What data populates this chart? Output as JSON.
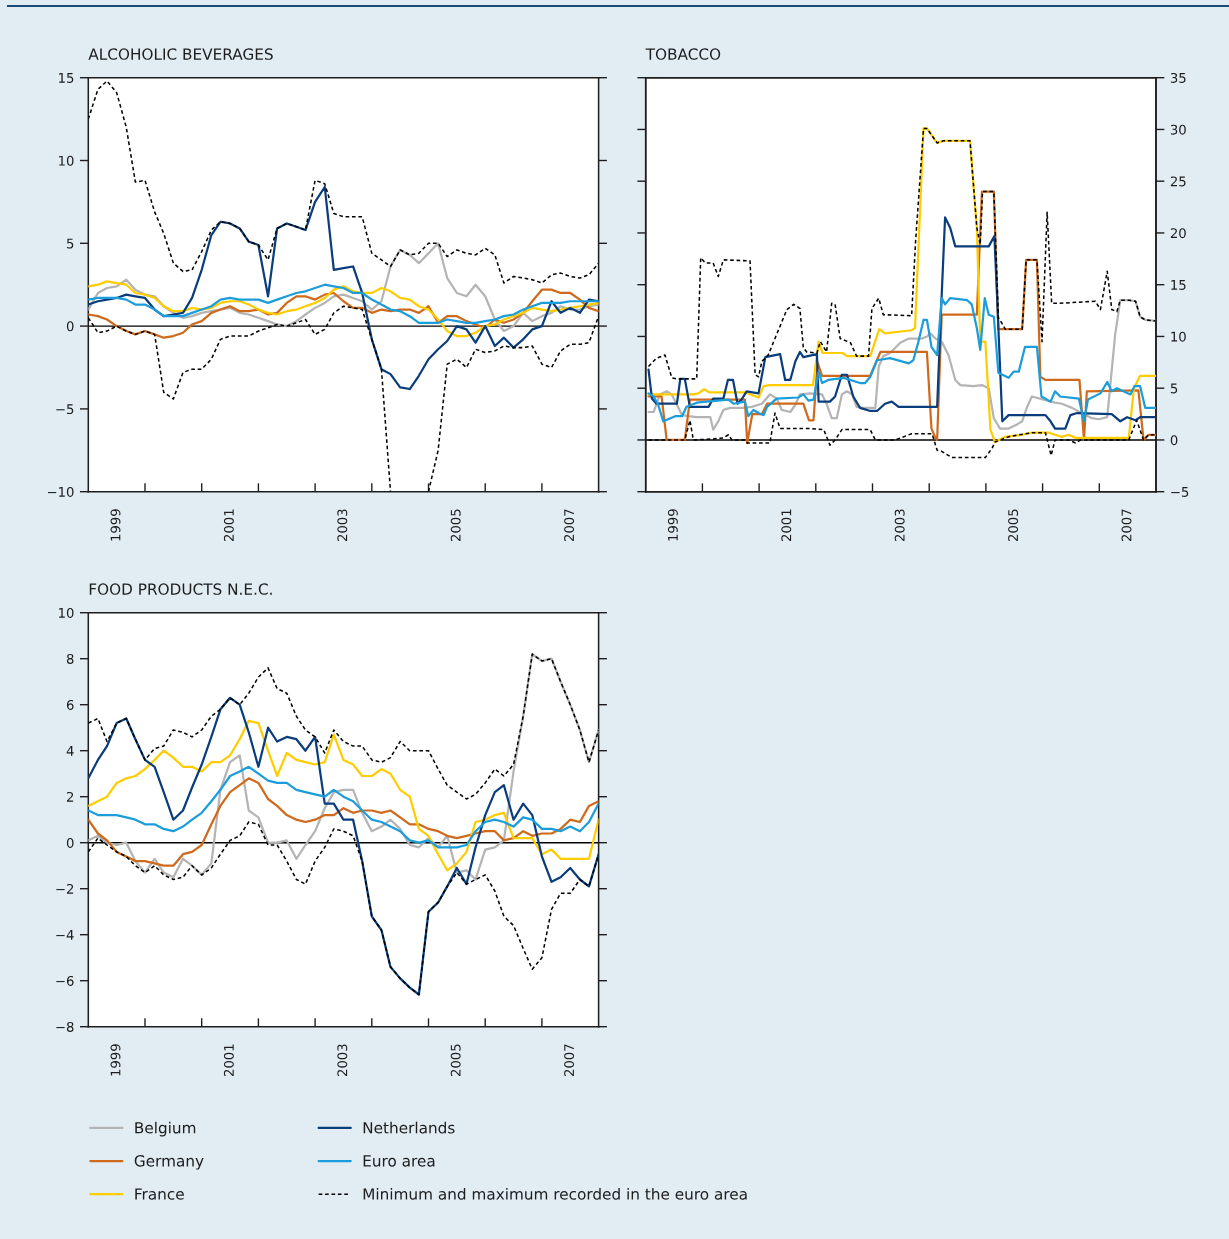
{
  "chart_data": [
    {
      "type": "line",
      "title": "ALCOHOLIC BEVERAGES",
      "legend": "bottom",
      "xlim": [
        1999,
        2008
      ],
      "xticks": [
        {
          "value": 1999.5,
          "label": "1999"
        },
        {
          "value": 2000,
          "label": null
        },
        {
          "value": 2001,
          "label": null
        },
        {
          "value": 2001.5,
          "label": "2001"
        },
        {
          "value": 2002,
          "label": null
        },
        {
          "value": 2003,
          "label": null
        },
        {
          "value": 2003.5,
          "label": "2003"
        },
        {
          "value": 2004,
          "label": null
        },
        {
          "value": 2005,
          "label": null
        },
        {
          "value": 2005.5,
          "label": "2005"
        },
        {
          "value": 2006,
          "label": null
        },
        {
          "value": 2007,
          "label": null
        },
        {
          "value": 2007.5,
          "label": "2007"
        }
      ],
      "ylim": [
        -10,
        15
      ],
      "yticks": [
        {
          "value": -10,
          "label": "−10"
        },
        {
          "value": -5,
          "label": "−5"
        },
        0,
        5,
        10,
        15
      ],
      "ref_lines": [
        {
          "axis": "y",
          "value": 0,
          "color": "#000000"
        }
      ],
      "x": [
        1999.0,
        1999.17,
        1999.33,
        1999.5,
        1999.67,
        1999.83,
        2000.0,
        2000.17,
        2000.33,
        2000.5,
        2000.67,
        2000.83,
        2001.0,
        2001.17,
        2001.33,
        2001.5,
        2001.67,
        2001.83,
        2002.0,
        2002.17,
        2002.33,
        2002.5,
        2002.67,
        2002.83,
        2003.0,
        2003.17,
        2003.33,
        2003.5,
        2003.67,
        2003.83,
        2004.0,
        2004.17,
        2004.33,
        2004.5,
        2004.67,
        2004.83,
        2005.0,
        2005.17,
        2005.33,
        2005.5,
        2005.67,
        2005.83,
        2006.0,
        2006.17,
        2006.33,
        2006.5,
        2006.67,
        2006.83,
        2007.0,
        2007.17,
        2007.33,
        2007.5,
        2007.67,
        2007.83,
        2008.0
      ],
      "series": [
        {
          "name": "Belgium",
          "color": "#b4b4b4",
          "values": [
            1.0,
            2.0,
            2.3,
            2.4,
            2.8,
            2.2,
            1.9,
            1.8,
            1.2,
            0.8,
            0.5,
            0.6,
            0.8,
            0.9,
            1.0,
            1.1,
            0.8,
            0.7,
            0.5,
            0.3,
            0.1,
            0.0,
            0.3,
            0.7,
            1.1,
            1.4,
            1.8,
            1.9,
            1.7,
            1.5,
            1.0,
            1.5,
            3.6,
            4.6,
            4.3,
            3.8,
            4.4,
            5.0,
            2.9,
            2.0,
            1.8,
            2.5,
            1.8,
            0.4,
            -0.3,
            0.0,
            0.8,
            0.3,
            0.6,
            0.8,
            1.2,
            1.0,
            1.0,
            1.2,
            1.3
          ]
        },
        {
          "name": "Germany",
          "color": "#cf6a1d",
          "values": [
            0.7,
            0.6,
            0.4,
            0.0,
            -0.3,
            -0.5,
            -0.3,
            -0.5,
            -0.7,
            -0.6,
            -0.4,
            0.1,
            0.3,
            0.8,
            1.0,
            1.2,
            0.9,
            0.9,
            1.0,
            0.7,
            0.8,
            1.4,
            1.8,
            1.8,
            1.6,
            1.9,
            2.0,
            1.5,
            1.1,
            1.1,
            0.8,
            1.0,
            0.9,
            1.0,
            1.0,
            0.8,
            1.2,
            0.2,
            0.6,
            0.6,
            0.3,
            0.1,
            -0.1,
            0.4,
            0.2,
            0.4,
            0.8,
            1.5,
            2.2,
            2.2,
            2.0,
            2.0,
            1.6,
            1.1,
            0.9
          ]
        },
        {
          "name": "France",
          "color": "#ffcc00",
          "values": [
            2.4,
            2.5,
            2.7,
            2.6,
            2.5,
            2.0,
            1.9,
            1.7,
            1.2,
            0.9,
            0.9,
            1.1,
            1.0,
            1.1,
            1.4,
            1.5,
            1.5,
            1.3,
            1.0,
            0.8,
            0.7,
            0.9,
            1.0,
            1.2,
            1.4,
            1.7,
            2.2,
            2.4,
            2.1,
            2.0,
            2.0,
            2.3,
            2.1,
            1.7,
            1.6,
            1.2,
            1.0,
            0.4,
            -0.3,
            -0.6,
            -0.6,
            -0.4,
            0.0,
            0.1,
            0.4,
            0.6,
            0.8,
            1.1,
            1.0,
            0.9,
            1.0,
            1.1,
            1.2,
            1.3,
            1.4
          ]
        },
        {
          "name": "Netherlands",
          "color": "#0a3d7c",
          "values": [
            1.3,
            1.5,
            1.6,
            1.7,
            1.9,
            1.8,
            1.7,
            1.0,
            0.6,
            0.7,
            0.8,
            1.7,
            3.4,
            5.5,
            6.3,
            6.2,
            5.9,
            5.1,
            4.9,
            1.8,
            5.9,
            6.2,
            6.0,
            5.8,
            7.5,
            8.4,
            3.4,
            3.5,
            3.6,
            2.0,
            -0.8,
            -2.6,
            -2.9,
            -3.7,
            -3.8,
            -3.0,
            -2.0,
            -1.4,
            -0.9,
            0.0,
            -0.2,
            -1.0,
            0.0,
            -1.2,
            -0.7,
            -1.3,
            -0.8,
            -0.2,
            0.0,
            1.5,
            0.8,
            1.1,
            0.8,
            1.6,
            1.5
          ]
        },
        {
          "name": "Euro area",
          "color": "#1b9ddb",
          "values": [
            1.6,
            1.7,
            1.7,
            1.7,
            1.6,
            1.3,
            1.3,
            1.0,
            0.6,
            0.6,
            0.6,
            0.8,
            1.0,
            1.2,
            1.6,
            1.7,
            1.6,
            1.6,
            1.6,
            1.4,
            1.6,
            1.8,
            2.0,
            2.1,
            2.3,
            2.5,
            2.4,
            2.3,
            2.0,
            2.0,
            1.6,
            1.3,
            1.0,
            0.9,
            0.6,
            0.2,
            0.2,
            0.2,
            0.4,
            0.3,
            0.2,
            0.2,
            0.3,
            0.4,
            0.6,
            0.7,
            1.0,
            1.2,
            1.4,
            1.4,
            1.4,
            1.5,
            1.5,
            1.5,
            1.5
          ]
        },
        {
          "name": "Minimum and maximum recorded in the euro area",
          "color": "#000000",
          "line_style": "dashed",
          "values": [
            12.5,
            14.3,
            14.8,
            14.1,
            12.0,
            8.7,
            8.8,
            6.9,
            5.6,
            3.8,
            3.3,
            3.4,
            4.5,
            5.8,
            6.3,
            6.2,
            5.9,
            5.1,
            4.9,
            4.0,
            5.9,
            6.2,
            6.0,
            5.8,
            8.8,
            8.6,
            6.8,
            6.6,
            6.6,
            6.6,
            4.4,
            4.0,
            3.6,
            4.6,
            4.3,
            4.4,
            5.0,
            5.0,
            4.2,
            4.6,
            4.4,
            4.3,
            4.7,
            4.3,
            2.6,
            3.0,
            2.9,
            2.8,
            2.6,
            3.1,
            3.2,
            3.0,
            2.9,
            3.1,
            3.8
          ]
        },
        {
          "color": "#000000",
          "line_style": "dashed",
          "values": [
            0.5,
            -0.4,
            -0.3,
            0.0,
            -0.3,
            -0.5,
            -0.3,
            -0.5,
            -4.0,
            -4.4,
            -2.8,
            -2.6,
            -2.6,
            -2.0,
            -0.8,
            -0.6,
            -0.6,
            -0.6,
            -0.3,
            -0.1,
            0.1,
            0.0,
            0.2,
            0.4,
            -0.5,
            -0.2,
            0.8,
            1.2,
            1.1,
            1.0,
            -0.8,
            -2.6,
            -10,
            null,
            null,
            null,
            -10,
            -7.5,
            -2.3,
            -2.0,
            -2.5,
            -1.4,
            -1.6,
            -1.5,
            -1.2,
            -1.3,
            -1.3,
            -1.2,
            -2.3,
            -2.5,
            -1.5,
            -1.1,
            -1.1,
            -1.0,
            0.6
          ]
        }
      ]
    },
    {
      "type": "line",
      "title": "TOBACCO",
      "xlim": [
        1999,
        2008
      ],
      "xticks": [
        {
          "value": 1999.5,
          "label": "1999"
        },
        {
          "value": 2000,
          "label": null
        },
        {
          "value": 2001,
          "label": null
        },
        {
          "value": 2001.5,
          "label": "2001"
        },
        {
          "value": 2002,
          "label": null
        },
        {
          "value": 2003,
          "label": null
        },
        {
          "value": 2003.5,
          "label": "2003"
        },
        {
          "value": 2004,
          "label": null
        },
        {
          "value": 2005,
          "label": null
        },
        {
          "value": 2005.5,
          "label": "2005"
        },
        {
          "value": 2006,
          "label": null
        },
        {
          "value": 2007,
          "label": null
        },
        {
          "value": 2007.5,
          "label": "2007"
        }
      ],
      "y2lim": [
        -5,
        35
      ],
      "y2ticks": [
        {
          "value": -5,
          "label": "−5"
        },
        0,
        5,
        10,
        15,
        20,
        25,
        30,
        35
      ],
      "ref_lines": [
        {
          "axis": "y2",
          "value": 0,
          "color": "#000000"
        }
      ],
      "series": [
        {
          "name": "Belgium",
          "color": "#b4b4b4",
          "axis": "y2",
          "x": [
            1999.05,
            1999.14,
            1999.25,
            1999.37,
            1999.46,
            1999.55,
            1999.64,
            1999.75,
            1999.9,
            2000.14,
            2000.19,
            2000.28,
            2000.37,
            2000.49,
            2000.72,
            2000.87,
            2001.05,
            2001.19,
            2001.31,
            2001.4,
            2001.55,
            2001.64,
            2001.72,
            2001.9,
            2002.11,
            2002.19,
            2002.28,
            2002.37,
            2002.46,
            2002.55,
            2002.64,
            2002.72,
            2002.84,
            2003.05,
            2003.11,
            2003.19,
            2003.31,
            2003.49,
            2003.64,
            2003.87,
            2003.96,
            2004.02,
            2004.11,
            2004.22,
            2004.34,
            2004.46,
            2004.55,
            2004.78,
            2004.93,
            2005.05,
            2005.14,
            2005.25,
            2005.4,
            2005.55,
            2005.64,
            2005.72,
            2005.81,
            2006.02,
            2006.22,
            2006.34,
            2006.52,
            2006.69,
            2006.87,
            2006.99,
            2007.14,
            2007.28,
            2007.37,
            2007.52,
            2007.64,
            2007.72,
            2007.81,
            2008.0
          ],
          "values": [
            2.7,
            2.7,
            4.4,
            4.7,
            4.4,
            3.4,
            2.4,
            2.3,
            2.2,
            2.2,
            1.0,
            1.8,
            2.9,
            3.1,
            3.1,
            3.2,
            3.5,
            4.4,
            4.0,
            2.9,
            2.7,
            3.4,
            4.4,
            4.5,
            4.4,
            3.5,
            2.1,
            2.1,
            4.4,
            4.7,
            4.4,
            3.2,
            3.1,
            3.1,
            7.1,
            8.1,
            8.4,
            9.4,
            9.8,
            9.8,
            10.0,
            10.3,
            9.8,
            9.5,
            8.2,
            5.8,
            5.3,
            5.2,
            5.3,
            5.0,
            2.1,
            1.1,
            1.1,
            1.5,
            1.8,
            3.1,
            4.2,
            3.9,
            3.6,
            3.5,
            3.1,
            2.6,
            2.1,
            2.0,
            2.2,
            10.2,
            13.5,
            13.5,
            13.4,
            11.9,
            11.6,
            11.5
          ]
        },
        {
          "name": "Germany",
          "color": "#cf6a1d",
          "axis": "y2",
          "x": [
            1999.05,
            1999.28,
            1999.37,
            1999.69,
            1999.78,
            2000.75,
            2000.79,
            2000.88,
            2001.05,
            2001.14,
            2001.78,
            2001.88,
            2001.96,
            2002.03,
            2002.11,
            2002.96,
            2003.14,
            2003.96,
            2004.04,
            2004.11,
            2004.14,
            2004.22,
            2004.84,
            2004.93,
            2005.14,
            2005.22,
            2005.64,
            2005.71,
            2005.9,
            2005.96,
            2006.05,
            2006.65,
            2006.73,
            2006.78,
            2007.69,
            2007.78,
            2007.87,
            2008.0
          ],
          "values": [
            4.2,
            4.2,
            0.0,
            0.0,
            3.9,
            3.9,
            -0.3,
            2.5,
            2.5,
            3.5,
            3.5,
            1.9,
            1.9,
            7.5,
            6.2,
            6.2,
            8.5,
            8.5,
            1.1,
            0.2,
            0.0,
            12.1,
            12.1,
            24.0,
            24.0,
            10.7,
            10.7,
            17.4,
            17.4,
            6.1,
            5.8,
            5.8,
            0.0,
            4.7,
            4.8,
            0.0,
            0.5,
            0.5
          ]
        },
        {
          "name": "France",
          "color": "#ffcc00",
          "axis": "y2",
          "x": [
            1999.05,
            1999.84,
            1999.93,
            2000.03,
            2000.12,
            2000.75,
            2000.99,
            2001.08,
            2001.19,
            2001.95,
            2002.05,
            2002.12,
            2002.47,
            2002.55,
            2002.96,
            2003.12,
            2003.22,
            2003.69,
            2003.75,
            2003.9,
            2003.96,
            2004.14,
            2004.25,
            2004.72,
            2004.84,
            2004.9,
            2004.99,
            2005.08,
            2005.16,
            2005.34,
            2005.64,
            2005.81,
            2006.11,
            2006.22,
            2006.34,
            2006.46,
            2006.58,
            2007.52,
            2007.61,
            2007.72,
            2008.0
          ],
          "values": [
            4.4,
            4.4,
            4.5,
            4.9,
            4.6,
            4.6,
            4.1,
            5.2,
            5.3,
            5.3,
            9.5,
            8.4,
            8.4,
            8.1,
            8.1,
            10.7,
            10.3,
            10.6,
            10.8,
            30.1,
            30.1,
            28.7,
            28.9,
            28.9,
            20.5,
            9.5,
            9.5,
            1.0,
            -0.2,
            0.3,
            0.5,
            0.7,
            0.7,
            0.5,
            0.3,
            0.5,
            0.2,
            0.2,
            5.0,
            6.2,
            6.2
          ]
        },
        {
          "name": "Netherlands",
          "color": "#0a3d7c",
          "axis": "y2",
          "x": [
            1999.05,
            1999.11,
            1999.19,
            1999.55,
            1999.61,
            1999.69,
            1999.78,
            2000.11,
            2000.19,
            2000.37,
            2000.45,
            2000.54,
            2000.62,
            2000.69,
            2000.78,
            2000.99,
            2001.11,
            2001.37,
            2001.46,
            2001.55,
            2001.64,
            2001.72,
            2001.78,
            2002.02,
            2002.05,
            2002.25,
            2002.34,
            2002.46,
            2002.55,
            2002.66,
            2002.78,
            2002.96,
            2003.08,
            2003.22,
            2003.34,
            2003.46,
            2004.14,
            2004.21,
            2004.28,
            2004.37,
            2004.46,
            2005.05,
            2005.15,
            2005.19,
            2005.29,
            2005.4,
            2006.05,
            2006.14,
            2006.22,
            2006.4,
            2006.49,
            2006.61,
            2007.22,
            2007.37,
            2007.49,
            2007.64,
            2007.72,
            2008.0
          ],
          "values": [
            6.8,
            4.0,
            3.5,
            3.5,
            5.9,
            5.9,
            3.2,
            3.2,
            4.0,
            4.0,
            5.8,
            5.8,
            3.5,
            3.9,
            4.7,
            4.5,
            8.0,
            8.3,
            5.8,
            5.8,
            7.6,
            8.5,
            8.0,
            8.3,
            3.7,
            3.7,
            4.2,
            6.3,
            6.3,
            4.2,
            3.1,
            2.8,
            2.8,
            3.5,
            3.7,
            3.2,
            3.2,
            12.7,
            21.5,
            20.5,
            18.7,
            18.7,
            19.7,
            14.7,
            1.8,
            2.4,
            2.4,
            1.8,
            1.1,
            1.1,
            2.4,
            2.6,
            2.5,
            1.8,
            2.2,
            1.9,
            2.2,
            2.2
          ]
        },
        {
          "name": "Euro area",
          "color": "#1b9ddb",
          "axis": "y2",
          "x": [
            1999.05,
            1999.14,
            1999.22,
            1999.31,
            1999.52,
            1999.64,
            1999.72,
            1999.9,
            2000.08,
            2000.46,
            2000.55,
            2000.75,
            2000.81,
            2000.9,
            2000.99,
            2001.08,
            2001.14,
            2001.31,
            2001.69,
            2001.78,
            2001.87,
            2001.96,
            2002.05,
            2002.11,
            2002.22,
            2002.49,
            2002.78,
            2002.87,
            2002.96,
            2003.08,
            2003.31,
            2003.64,
            2003.72,
            2003.81,
            2003.9,
            2003.96,
            2004.04,
            2004.14,
            2004.22,
            2004.28,
            2004.37,
            2004.67,
            2004.75,
            2004.84,
            2004.9,
            2004.98,
            2005.05,
            2005.14,
            2005.22,
            2005.4,
            2005.49,
            2005.58,
            2005.69,
            2005.9,
            2005.98,
            2006.14,
            2006.22,
            2006.31,
            2006.64,
            2006.73,
            2006.8,
            2007.02,
            2007.14,
            2007.22,
            2007.31,
            2007.55,
            2007.62,
            2007.72,
            2007.81,
            2008.0
          ],
          "values": [
            4.5,
            4.2,
            3.4,
            1.8,
            2.3,
            2.3,
            3.2,
            3.6,
            3.7,
            3.9,
            3.5,
            3.7,
            2.3,
            2.9,
            2.6,
            2.4,
            3.2,
            4.0,
            4.1,
            4.4,
            3.8,
            3.9,
            6.6,
            5.5,
            5.8,
            6.0,
            5.5,
            5.5,
            6.1,
            7.7,
            7.9,
            7.4,
            7.7,
            9.5,
            11.6,
            11.6,
            9.0,
            8.2,
            13.7,
            13.1,
            13.7,
            13.5,
            13.1,
            10.8,
            8.7,
            13.7,
            12.1,
            11.9,
            6.5,
            6.0,
            6.6,
            6.6,
            9.0,
            9.0,
            4.2,
            3.7,
            4.7,
            4.2,
            4.0,
            1.8,
            3.9,
            4.5,
            5.6,
            4.7,
            5.0,
            4.4,
            5.2,
            5.2,
            3.1,
            3.1
          ]
        },
        {
          "name": "Minimum and maximum recorded in the euro area",
          "color": "#000000",
          "line_style": "dashed",
          "axis": "y2",
          "x": [
            1999.05,
            1999.19,
            1999.34,
            1999.46,
            1999.55,
            1999.9,
            1999.97,
            2000.05,
            2000.19,
            2000.28,
            2000.37,
            2000.84,
            2000.93,
            2000.99,
            2001.05,
            2001.16,
            2001.49,
            2001.61,
            2001.72,
            2001.78,
            2001.84,
            2002.02,
            2002.08,
            2002.19,
            2002.28,
            2002.34,
            2002.43,
            2002.61,
            2002.72,
            2002.93,
            2002.99,
            2003.11,
            2003.19,
            2003.69,
            2003.76,
            2003.9,
            2003.96,
            2004.14,
            2004.25,
            2004.72,
            2004.84,
            2004.9,
            2004.94,
            2005.14,
            2005.22,
            2005.28,
            2005.34,
            2005.64,
            2005.71,
            2005.9,
            2005.99,
            2006.08,
            2006.16,
            2006.28,
            2006.93,
            2007.02,
            2007.14,
            2007.22,
            2007.31,
            2007.37,
            2007.52,
            2007.64,
            2007.72,
            2007.81,
            2008.0
          ],
          "values": [
            7.1,
            7.9,
            8.2,
            6.0,
            5.9,
            5.9,
            17.6,
            17.1,
            17.1,
            15.8,
            17.4,
            17.3,
            6.3,
            6.1,
            7.6,
            8.2,
            12.6,
            13.1,
            12.7,
            8.9,
            8.5,
            8.4,
            9.5,
            8.5,
            13.2,
            13.1,
            9.8,
            9.4,
            8.1,
            8.1,
            12.7,
            13.7,
            12.1,
            12.0,
            19.2,
            30.1,
            30.1,
            28.7,
            28.9,
            28.9,
            20.5,
            18.9,
            24.0,
            24.0,
            11.8,
            11.3,
            10.7,
            10.7,
            17.4,
            17.4,
            9.5,
            22.0,
            13.2,
            13.2,
            13.4,
            12.6,
            16.3,
            12.6,
            12.4,
            13.5,
            13.5,
            13.4,
            11.9,
            11.6,
            11.5
          ]
        },
        {
          "color": "#000000",
          "line_style": "dashed",
          "axis": "y2",
          "x": [
            1999.05,
            1999.69,
            1999.78,
            1999.84,
            2000.19,
            2000.37,
            2000.46,
            2000.52,
            2000.75,
            2000.79,
            2000.93,
            2001.19,
            2001.28,
            2001.37,
            2001.9,
            2002.14,
            2002.25,
            2002.34,
            2002.46,
            2002.96,
            2003.05,
            2003.4,
            2003.69,
            2004.05,
            2004.14,
            2004.22,
            2004.4,
            2004.99,
            2005.11,
            2005.16,
            2005.4,
            2005.58,
            2005.81,
            2006.05,
            2006.15,
            2006.22,
            2006.46,
            2006.58,
            2006.67,
            2007.52,
            2007.66,
            2007.78,
            2007.87,
            2008.0
          ],
          "values": [
            0.0,
            0.0,
            1.9,
            0.0,
            0.1,
            0.2,
            0.5,
            0.0,
            0.0,
            -0.3,
            -0.3,
            -0.3,
            2.6,
            1.1,
            1.1,
            1.0,
            -0.5,
            0.0,
            1.0,
            1.0,
            0.0,
            0.0,
            0.6,
            0.6,
            -1.0,
            -1.1,
            -1.7,
            -1.7,
            -0.8,
            -0.2,
            0.3,
            0.5,
            0.7,
            0.7,
            -1.5,
            0.0,
            0.0,
            -0.3,
            0.0,
            0.0,
            1.9,
            0.0,
            0.5,
            0.5
          ]
        }
      ]
    },
    {
      "type": "line",
      "title": "FOOD PRODUCTS N.E.C.",
      "xlim": [
        1999,
        2008
      ],
      "xticks": [
        {
          "value": 1999.5,
          "label": "1999"
        },
        {
          "value": 2000,
          "label": null
        },
        {
          "value": 2001,
          "label": null
        },
        {
          "value": 2001.5,
          "label": "2001"
        },
        {
          "value": 2002,
          "label": null
        },
        {
          "value": 2003,
          "label": null
        },
        {
          "value": 2003.5,
          "label": "2003"
        },
        {
          "value": 2004,
          "label": null
        },
        {
          "value": 2005,
          "label": null
        },
        {
          "value": 2005.5,
          "label": "2005"
        },
        {
          "value": 2006,
          "label": null
        },
        {
          "value": 2007,
          "label": null
        },
        {
          "value": 2007.5,
          "label": "2007"
        }
      ],
      "ylim": [
        -8,
        10
      ],
      "yticks": [
        {
          "value": -8,
          "label": "−8"
        },
        {
          "value": -6,
          "label": "−6"
        },
        {
          "value": -4,
          "label": "−4"
        },
        {
          "value": -2,
          "label": "−2"
        },
        0,
        2,
        4,
        6,
        8,
        10
      ],
      "ref_lines": [
        {
          "axis": "y",
          "value": 0,
          "color": "#000000"
        }
      ],
      "x": [
        1999.0,
        1999.17,
        1999.33,
        1999.5,
        1999.67,
        1999.83,
        2000.0,
        2000.17,
        2000.33,
        2000.5,
        2000.67,
        2000.83,
        2001.0,
        2001.17,
        2001.33,
        2001.5,
        2001.67,
        2001.83,
        2002.0,
        2002.17,
        2002.33,
        2002.5,
        2002.67,
        2002.83,
        2003.0,
        2003.17,
        2003.33,
        2003.5,
        2003.67,
        2003.83,
        2004.0,
        2004.17,
        2004.33,
        2004.5,
        2004.67,
        2004.83,
        2005.0,
        2005.17,
        2005.33,
        2005.5,
        2005.67,
        2005.83,
        2006.0,
        2006.17,
        2006.33,
        2006.5,
        2006.67,
        2006.83,
        2007.0,
        2007.17,
        2007.33,
        2007.5,
        2007.67,
        2007.83,
        2008.0
      ],
      "series": [
        {
          "name": "Belgium",
          "color": "#b4b4b4",
          "values": [
            0.1,
            0.3,
            0.0,
            -0.1,
            0.0,
            -0.8,
            -1.3,
            -0.7,
            -1.3,
            -1.5,
            -0.7,
            -1.0,
            -1.4,
            -0.9,
            2.3,
            3.5,
            3.8,
            1.4,
            1.1,
            0.0,
            0.0,
            0.1,
            -0.7,
            -0.1,
            0.5,
            1.5,
            2.2,
            2.3,
            2.3,
            1.3,
            0.5,
            0.7,
            1.0,
            0.6,
            -0.1,
            -0.2,
            0.2,
            -0.2,
            0.3,
            -1.3,
            -1.2,
            -1.6,
            -0.3,
            -0.2,
            0.1,
            3.1,
            5.5,
            8.2,
            7.9,
            8.0,
            7.0,
            6.0,
            4.9,
            3.5,
            4.9
          ]
        },
        {
          "name": "Germany",
          "color": "#cf6a1d",
          "values": [
            1.0,
            0.4,
            0.1,
            -0.4,
            -0.6,
            -0.8,
            -0.8,
            -0.9,
            -1.0,
            -1.0,
            -0.5,
            -0.4,
            -0.1,
            0.8,
            1.6,
            2.2,
            2.5,
            2.8,
            2.6,
            1.9,
            1.6,
            1.2,
            1.0,
            0.9,
            1.0,
            1.2,
            1.2,
            1.5,
            1.3,
            1.4,
            1.4,
            1.3,
            1.4,
            1.1,
            0.8,
            0.8,
            0.6,
            0.5,
            0.3,
            0.2,
            0.3,
            0.4,
            0.5,
            0.5,
            0.1,
            0.2,
            0.5,
            0.3,
            0.4,
            0.4,
            0.6,
            1.0,
            0.9,
            1.6,
            1.8
          ]
        },
        {
          "name": "France",
          "color": "#ffcc00",
          "values": [
            1.6,
            1.8,
            2.0,
            2.6,
            2.8,
            2.9,
            3.2,
            3.6,
            4.0,
            3.7,
            3.3,
            3.3,
            3.1,
            3.5,
            3.5,
            3.8,
            4.5,
            5.3,
            5.2,
            4.0,
            2.9,
            3.9,
            3.6,
            3.5,
            3.4,
            3.5,
            4.7,
            3.6,
            3.4,
            2.9,
            2.9,
            3.2,
            3.0,
            2.3,
            2.0,
            0.6,
            0.3,
            -0.5,
            -1.2,
            -0.9,
            -0.4,
            0.9,
            1.0,
            1.2,
            1.3,
            0.2,
            0.2,
            0.2,
            -0.5,
            -0.3,
            -0.7,
            -0.7,
            -0.7,
            -0.7,
            1.0
          ]
        },
        {
          "name": "Netherlands",
          "color": "#0a3d7c",
          "values": [
            2.8,
            3.6,
            4.2,
            5.2,
            5.4,
            4.5,
            3.6,
            3.3,
            2.2,
            1.0,
            1.4,
            2.4,
            3.4,
            4.6,
            5.8,
            6.3,
            6.0,
            4.8,
            3.3,
            5.0,
            4.4,
            4.6,
            4.5,
            4.0,
            4.6,
            1.7,
            1.7,
            1.0,
            1.0,
            -0.8,
            -3.2,
            -3.8,
            -5.4,
            -5.9,
            -6.3,
            -6.6,
            -3.0,
            -2.6,
            -1.9,
            -1.1,
            -1.8,
            -0.2,
            1.2,
            2.2,
            2.5,
            1.0,
            1.7,
            1.2,
            -0.6,
            -1.7,
            -1.5,
            -1.1,
            -1.6,
            -1.9,
            -0.5
          ]
        },
        {
          "name": "Euro area",
          "color": "#1b9ddb",
          "values": [
            1.4,
            1.2,
            1.2,
            1.2,
            1.1,
            1.0,
            0.8,
            0.8,
            0.6,
            0.5,
            0.7,
            1.0,
            1.3,
            1.8,
            2.3,
            2.9,
            3.1,
            3.3,
            3.0,
            2.7,
            2.6,
            2.6,
            2.3,
            2.2,
            2.1,
            2.0,
            2.3,
            2.0,
            1.8,
            1.4,
            1.0,
            0.9,
            0.7,
            0.5,
            0.1,
            0.0,
            0.1,
            -0.2,
            -0.2,
            -0.2,
            -0.1,
            0.5,
            0.9,
            1.0,
            0.9,
            0.7,
            1.1,
            1.0,
            0.6,
            0.6,
            0.5,
            0.7,
            0.5,
            0.9,
            1.7
          ]
        },
        {
          "name": "Minimum and maximum recorded in the euro area",
          "color": "#000000",
          "line_style": "dashed",
          "values": [
            5.2,
            5.4,
            4.4,
            5.2,
            5.4,
            4.5,
            3.6,
            4.1,
            4.2,
            4.9,
            4.8,
            4.6,
            4.9,
            5.5,
            5.8,
            6.3,
            6.0,
            6.5,
            7.2,
            7.6,
            6.7,
            6.5,
            5.5,
            4.9,
            4.6,
            3.9,
            4.9,
            4.4,
            4.2,
            4.2,
            3.6,
            3.5,
            3.7,
            4.4,
            4.0,
            4.0,
            4.0,
            3.2,
            2.5,
            2.2,
            1.9,
            2.1,
            2.6,
            3.2,
            2.9,
            3.4,
            5.5,
            8.2,
            7.9,
            8.0,
            7.0,
            6.0,
            4.9,
            3.5,
            4.9
          ]
        },
        {
          "color": "#000000",
          "line_style": "dashed",
          "values": [
            -0.4,
            0.2,
            -0.1,
            -0.4,
            -0.6,
            -1.0,
            -1.3,
            -1.0,
            -1.4,
            -1.6,
            -1.5,
            -1.0,
            -1.4,
            -1.1,
            -0.5,
            0.1,
            0.3,
            0.9,
            0.8,
            -0.1,
            -0.1,
            -0.8,
            -1.6,
            -1.8,
            -0.8,
            -0.2,
            0.6,
            0.5,
            0.3,
            -0.8,
            -3.2,
            -3.8,
            -5.4,
            -5.9,
            -6.3,
            -6.6,
            -3.0,
            -2.6,
            -1.9,
            -1.3,
            -1.8,
            -1.6,
            -1.4,
            -2.1,
            -3.2,
            -3.6,
            -4.6,
            -5.5,
            -5.0,
            -2.9,
            -2.2,
            -2.2,
            -1.6,
            -1.9,
            -0.5
          ]
        }
      ]
    }
  ]
}
